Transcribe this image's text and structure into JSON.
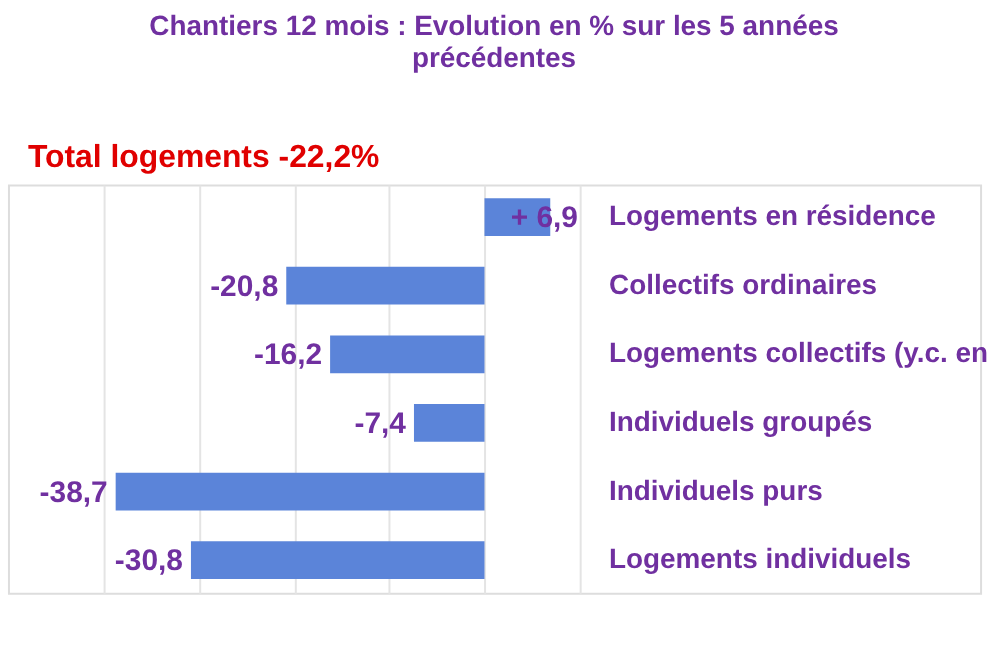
{
  "chart_data": {
    "type": "bar",
    "orientation": "horizontal",
    "title": "Chantiers 12 mois  : Evolution en % sur les 5 années précédentes",
    "annotations": [
      "Total logements -22,2%"
    ],
    "categories": [
      "Logements en résidence",
      "Collectifs ordinaires",
      "Logements collectifs (y.c. en",
      "Individuels groupés",
      "Individuels purs",
      "Logements individuels"
    ],
    "values": [
      6.9,
      -20.8,
      -16.2,
      -7.4,
      -38.7,
      -30.8
    ],
    "value_labels": [
      "+ 6,9",
      "-20,8",
      "-16,2",
      "-7,4",
      "-38,7",
      "-30,8"
    ],
    "color": "#5b84d9",
    "xlim": [
      -50,
      52
    ],
    "xticks": [
      -40,
      -30,
      -20,
      -10,
      0,
      10
    ],
    "grid": "x",
    "tick_labels": "y"
  }
}
